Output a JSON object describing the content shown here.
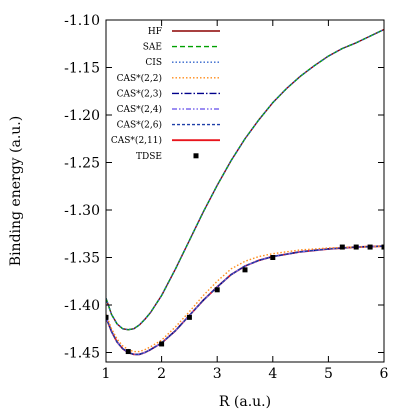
{
  "chart_data": {
    "type": "line",
    "title": "",
    "xlabel": "R (a.u.)",
    "ylabel": "Binding energy (a.u.)",
    "xlim": [
      1,
      6
    ],
    "ylim": [
      -1.46,
      -1.1
    ],
    "x_ticks": [
      1,
      2,
      3,
      4,
      5,
      6
    ],
    "x_tick_labels": [
      "1",
      "2",
      "3",
      "4",
      "5",
      "6"
    ],
    "y_ticks": [
      -1.1,
      -1.15,
      -1.2,
      -1.25,
      -1.3,
      -1.35,
      -1.4,
      -1.45
    ],
    "y_tick_labels": [
      "-1.10",
      "-1.15",
      "-1.20",
      "-1.25",
      "-1.30",
      "-1.35",
      "-1.40",
      "-1.45"
    ],
    "grid": false,
    "legend_position": "top-left",
    "series": [
      {
        "name": "HF",
        "color": "#8b0000",
        "style": "solid",
        "x": [
          1.0,
          1.1,
          1.2,
          1.3,
          1.4,
          1.5,
          1.6,
          1.7,
          1.8,
          2.0,
          2.25,
          2.5,
          2.75,
          3.0,
          3.25,
          3.5,
          3.75,
          4.0,
          4.25,
          4.5,
          4.75,
          5.0,
          5.25,
          5.5,
          5.75,
          6.0
        ],
        "y": [
          -1.393,
          -1.41,
          -1.42,
          -1.425,
          -1.426,
          -1.425,
          -1.421,
          -1.415,
          -1.408,
          -1.39,
          -1.362,
          -1.332,
          -1.302,
          -1.274,
          -1.248,
          -1.225,
          -1.205,
          -1.187,
          -1.172,
          -1.159,
          -1.148,
          -1.138,
          -1.13,
          -1.124,
          -1.117,
          -1.11
        ]
      },
      {
        "name": "SAE",
        "color": "#00a000",
        "style": "dashed",
        "x": [
          1.0,
          1.1,
          1.2,
          1.3,
          1.4,
          1.5,
          1.6,
          1.7,
          1.8,
          2.0,
          2.25,
          2.5,
          2.75,
          3.0,
          3.25,
          3.5,
          3.75,
          4.0,
          4.25,
          4.5,
          4.75,
          5.0,
          5.25,
          5.5,
          5.75,
          6.0
        ],
        "y": [
          -1.393,
          -1.41,
          -1.42,
          -1.425,
          -1.426,
          -1.425,
          -1.421,
          -1.415,
          -1.408,
          -1.39,
          -1.362,
          -1.332,
          -1.302,
          -1.274,
          -1.248,
          -1.225,
          -1.205,
          -1.187,
          -1.172,
          -1.159,
          -1.148,
          -1.138,
          -1.13,
          -1.124,
          -1.117,
          -1.11
        ]
      },
      {
        "name": "CIS",
        "color": "#3366cc",
        "style": "dotted",
        "x": [
          1.0,
          1.1,
          1.2,
          1.3,
          1.4,
          1.5,
          1.6,
          1.7,
          1.8,
          2.0,
          2.25,
          2.5,
          2.75,
          3.0,
          3.25,
          3.5,
          3.75,
          4.0,
          4.25,
          4.5,
          4.75,
          5.0,
          5.25,
          5.5,
          5.75,
          6.0
        ],
        "y": [
          -1.393,
          -1.41,
          -1.42,
          -1.425,
          -1.426,
          -1.425,
          -1.421,
          -1.415,
          -1.408,
          -1.39,
          -1.362,
          -1.332,
          -1.302,
          -1.274,
          -1.248,
          -1.225,
          -1.205,
          -1.187,
          -1.172,
          -1.159,
          -1.148,
          -1.138,
          -1.13,
          -1.124,
          -1.117,
          -1.11
        ]
      },
      {
        "name": "CAS*(2,2)",
        "color": "#ff8c1a",
        "style": "dotted",
        "x": [
          1.0,
          1.1,
          1.2,
          1.3,
          1.4,
          1.5,
          1.6,
          1.7,
          1.8,
          2.0,
          2.25,
          2.5,
          2.75,
          3.0,
          3.25,
          3.5,
          3.75,
          4.0,
          4.5,
          5.0,
          5.5,
          6.0
        ],
        "y": [
          -1.41,
          -1.425,
          -1.436,
          -1.443,
          -1.447,
          -1.449,
          -1.449,
          -1.447,
          -1.444,
          -1.437,
          -1.423,
          -1.407,
          -1.39,
          -1.375,
          -1.362,
          -1.354,
          -1.349,
          -1.346,
          -1.342,
          -1.34,
          -1.339,
          -1.338
        ]
      },
      {
        "name": "CAS*(2,3)",
        "color": "#00008b",
        "style": "dashdot",
        "x": [
          1.0,
          1.1,
          1.2,
          1.3,
          1.4,
          1.5,
          1.6,
          1.7,
          1.8,
          2.0,
          2.25,
          2.5,
          2.75,
          3.0,
          3.25,
          3.5,
          3.75,
          4.0,
          4.5,
          5.0,
          5.5,
          6.0
        ],
        "y": [
          -1.413,
          -1.428,
          -1.439,
          -1.446,
          -1.45,
          -1.452,
          -1.452,
          -1.45,
          -1.447,
          -1.44,
          -1.427,
          -1.411,
          -1.395,
          -1.381,
          -1.368,
          -1.359,
          -1.353,
          -1.349,
          -1.344,
          -1.341,
          -1.339,
          -1.338
        ]
      },
      {
        "name": "CAS*(2,4)",
        "color": "#7b68ee",
        "style": "dashdotdot",
        "x": [
          1.0,
          1.1,
          1.2,
          1.3,
          1.4,
          1.5,
          1.6,
          1.7,
          1.8,
          2.0,
          2.25,
          2.5,
          2.75,
          3.0,
          3.25,
          3.5,
          3.75,
          4.0,
          4.5,
          5.0,
          5.5,
          6.0
        ],
        "y": [
          -1.413,
          -1.428,
          -1.439,
          -1.446,
          -1.45,
          -1.452,
          -1.452,
          -1.45,
          -1.447,
          -1.44,
          -1.427,
          -1.411,
          -1.395,
          -1.381,
          -1.368,
          -1.359,
          -1.353,
          -1.349,
          -1.344,
          -1.341,
          -1.339,
          -1.338
        ]
      },
      {
        "name": "CAS*(2,6)",
        "color": "#1e3fa8",
        "style": "dense-dash",
        "x": [
          1.0,
          1.1,
          1.2,
          1.3,
          1.4,
          1.5,
          1.6,
          1.7,
          1.8,
          2.0,
          2.25,
          2.5,
          2.75,
          3.0,
          3.25,
          3.5,
          3.75,
          4.0,
          4.5,
          5.0,
          5.5,
          6.0
        ],
        "y": [
          -1.413,
          -1.428,
          -1.439,
          -1.446,
          -1.45,
          -1.452,
          -1.452,
          -1.45,
          -1.447,
          -1.44,
          -1.427,
          -1.411,
          -1.395,
          -1.381,
          -1.368,
          -1.359,
          -1.353,
          -1.349,
          -1.344,
          -1.341,
          -1.339,
          -1.338
        ]
      },
      {
        "name": "CAS*(2,11)",
        "color": "#e8141c",
        "style": "solid",
        "x": [
          1.0,
          1.1,
          1.2,
          1.3,
          1.4,
          1.5,
          1.6,
          1.7,
          1.8,
          2.0,
          2.25,
          2.5,
          2.75,
          3.0,
          3.25,
          3.5,
          3.75,
          4.0,
          4.5,
          5.0,
          5.5,
          6.0
        ],
        "y": [
          -1.413,
          -1.428,
          -1.439,
          -1.446,
          -1.45,
          -1.452,
          -1.452,
          -1.45,
          -1.447,
          -1.44,
          -1.427,
          -1.411,
          -1.395,
          -1.381,
          -1.368,
          -1.359,
          -1.353,
          -1.349,
          -1.344,
          -1.341,
          -1.339,
          -1.338
        ]
      },
      {
        "name": "TDSE",
        "color": "#000000",
        "style": "markers",
        "x": [
          1.0,
          1.4,
          2.0,
          2.5,
          3.0,
          3.5,
          4.0,
          5.25,
          5.5,
          5.75,
          6.0
        ],
        "y": [
          -1.413,
          -1.449,
          -1.441,
          -1.413,
          -1.384,
          -1.363,
          -1.35,
          -1.339,
          -1.339,
          -1.339,
          -1.339
        ]
      }
    ]
  }
}
